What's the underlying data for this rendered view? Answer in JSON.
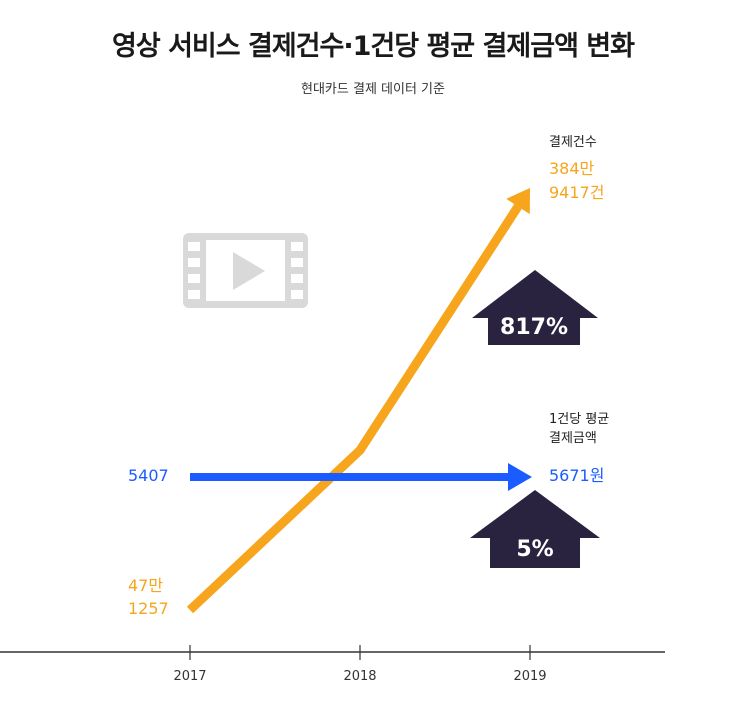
{
  "title": "영상 서비스 결제건수·1건당 평균 결제금액 변화",
  "subtitle": "현대카드 결제 데이터 기준",
  "chart_data": {
    "type": "line",
    "title": "영상 서비스 결제건수·1건당 평균 결제금액 변화",
    "subtitle": "현대카드 결제 데이터 기준",
    "categories": [
      "2017",
      "2018",
      "2019"
    ],
    "series": [
      {
        "name": "결제건수",
        "color": "#f7a51c",
        "values": [
          471257,
          1750000,
          3849417
        ],
        "labels": {
          "start_line1": "47만",
          "start_line2": "1257",
          "end_line1": "384만",
          "end_line2": "9417건"
        }
      },
      {
        "name": "1건당 평균 결제금액",
        "color": "#1a5cff",
        "values": [
          5407,
          null,
          5671
        ],
        "labels": {
          "start": "5407",
          "end": "5671원"
        }
      }
    ],
    "series_titles": {
      "count_title": "결제건수",
      "avg_title_line1": "1건당 평균",
      "avg_title_line2": "결제금액"
    },
    "annotations": [
      {
        "text": "817%",
        "icon": "up-arrow",
        "color": "#2a2340"
      },
      {
        "text": "5%",
        "icon": "up-arrow",
        "color": "#2a2340"
      }
    ],
    "decoration_icon": "video-film-play-icon",
    "grid": false,
    "legend": "none"
  }
}
